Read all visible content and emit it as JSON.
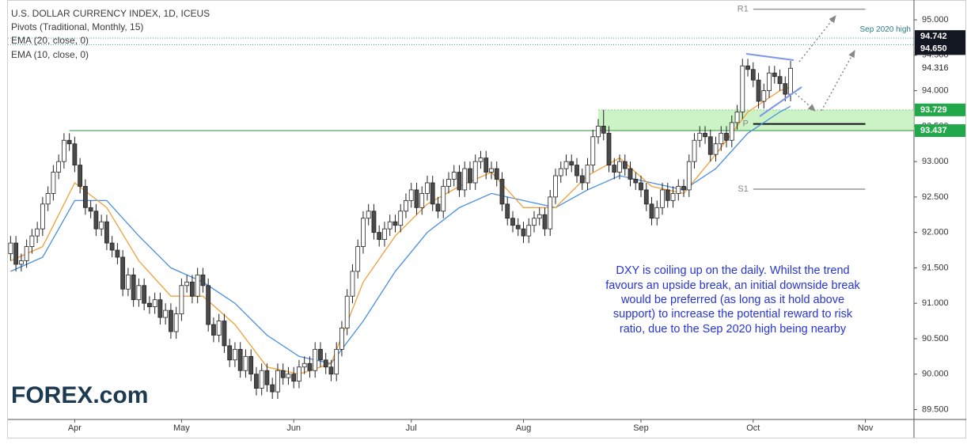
{
  "chart_data": {
    "type": "candlestick",
    "title": "U.S. DOLLAR CURRENCY INDEX, 1D, ICEUS",
    "legend": [
      "Pivots (Traditional, Monthly, 15)"
    ],
    "colors": {
      "up": "#ffffff",
      "down": "#4a4a4a",
      "outline": "#222222"
    },
    "open": [
      91.7,
      91.85,
      91.55,
      91.6,
      91.8,
      91.95,
      92.05,
      92.4,
      92.55,
      92.85,
      93.0,
      93.3,
      93.25,
      92.95,
      92.65,
      92.35,
      92.3,
      92.05,
      92.15,
      91.85,
      91.75,
      91.65,
      91.2,
      91.4,
      91.05,
      91.25,
      91.0,
      90.95,
      91.05,
      90.8,
      90.9,
      90.6,
      90.85,
      91.25,
      91.3,
      91.1,
      91.4,
      91.25,
      90.7,
      90.55,
      90.75,
      90.4,
      90.2,
      90.35,
      90.05,
      90.25,
      90.0,
      89.8,
      90.05,
      89.85,
      89.75,
      90.05,
      89.95,
      90.0,
      89.9,
      90.1,
      90.15,
      90.05,
      90.35,
      90.2,
      90.1,
      90.0,
      90.35,
      90.65,
      91.1,
      91.45,
      91.8,
      92.2,
      92.3,
      92.0,
      91.9,
      92.05,
      92.15,
      92.1,
      92.3,
      92.45,
      92.6,
      92.35,
      92.55,
      92.7,
      92.4,
      92.3,
      92.65,
      92.75,
      92.85,
      92.6,
      92.9,
      92.7,
      93.0,
      93.05,
      92.85,
      92.9,
      92.75,
      92.4,
      92.2,
      92.1,
      92.05,
      91.95,
      92.1,
      92.2,
      92.25,
      92.05,
      92.5,
      92.8,
      92.9,
      93.0,
      92.95,
      92.8,
      92.7,
      92.95,
      93.35,
      93.5,
      93.4,
      92.95,
      92.85,
      93.0,
      92.9,
      92.75,
      92.7,
      92.6,
      92.4,
      92.2,
      92.35,
      92.6,
      92.45,
      92.55,
      92.65,
      92.6,
      93.0,
      93.3,
      93.4,
      93.35,
      93.1,
      93.25,
      93.4,
      93.3,
      93.55,
      93.7,
      94.35,
      94.3,
      94.15,
      93.85,
      94.0,
      94.25,
      94.2,
      94.1,
      93.95
    ],
    "high": [
      91.95,
      91.95,
      91.7,
      91.9,
      92.05,
      92.15,
      92.5,
      92.65,
      92.95,
      93.1,
      93.4,
      93.4,
      93.35,
      93.05,
      92.75,
      92.45,
      92.4,
      92.25,
      92.25,
      91.95,
      91.85,
      91.75,
      91.5,
      91.5,
      91.35,
      91.35,
      91.1,
      91.15,
      91.15,
      91.0,
      91.0,
      90.95,
      91.35,
      91.4,
      91.4,
      91.5,
      91.5,
      91.35,
      90.8,
      90.85,
      90.85,
      90.5,
      90.45,
      90.45,
      90.35,
      90.35,
      90.1,
      90.15,
      90.15,
      89.95,
      90.15,
      90.15,
      90.1,
      90.1,
      90.2,
      90.25,
      90.25,
      90.45,
      90.45,
      90.3,
      90.2,
      90.45,
      90.75,
      91.2,
      91.55,
      91.9,
      92.3,
      92.4,
      92.4,
      92.1,
      92.15,
      92.25,
      92.25,
      92.4,
      92.55,
      92.7,
      92.7,
      92.65,
      92.8,
      92.8,
      92.5,
      92.75,
      92.85,
      92.95,
      92.95,
      93.0,
      93.0,
      93.1,
      93.15,
      93.15,
      93.0,
      93.0,
      92.85,
      92.5,
      92.3,
      92.2,
      92.15,
      92.2,
      92.3,
      92.35,
      92.35,
      92.6,
      92.9,
      93.0,
      93.1,
      93.1,
      93.05,
      92.9,
      93.05,
      93.45,
      93.6,
      93.73,
      93.5,
      93.05,
      93.1,
      93.1,
      93.0,
      92.85,
      92.8,
      92.7,
      92.5,
      92.45,
      92.7,
      92.7,
      92.65,
      92.75,
      92.75,
      93.1,
      93.4,
      93.5,
      93.5,
      93.45,
      93.35,
      93.5,
      93.5,
      93.65,
      93.8,
      94.45,
      94.45,
      94.4,
      94.25,
      94.1,
      94.35,
      94.35,
      94.3,
      94.2,
      94.42
    ],
    "low": [
      91.6,
      91.45,
      91.45,
      91.5,
      91.7,
      91.85,
      91.95,
      92.3,
      92.45,
      92.75,
      92.9,
      93.15,
      92.85,
      92.55,
      92.25,
      92.2,
      91.95,
      91.95,
      91.75,
      91.65,
      91.55,
      91.1,
      91.1,
      90.95,
      90.95,
      90.9,
      90.85,
      90.85,
      90.7,
      90.7,
      90.5,
      90.5,
      90.75,
      91.15,
      91.0,
      91.0,
      91.15,
      90.6,
      90.45,
      90.45,
      90.3,
      90.1,
      90.1,
      89.95,
      89.95,
      89.9,
      89.7,
      89.7,
      89.75,
      89.65,
      89.65,
      89.85,
      89.85,
      89.8,
      89.8,
      90.0,
      89.95,
      89.95,
      90.1,
      90.0,
      89.9,
      89.9,
      90.25,
      90.55,
      91.0,
      91.35,
      91.7,
      92.1,
      91.9,
      91.8,
      91.8,
      91.95,
      92.0,
      92.0,
      92.2,
      92.35,
      92.25,
      92.25,
      92.45,
      92.3,
      92.2,
      92.2,
      92.55,
      92.65,
      92.5,
      92.5,
      92.6,
      92.6,
      92.9,
      92.75,
      92.75,
      92.65,
      92.3,
      92.1,
      92.0,
      91.95,
      91.85,
      91.85,
      92.0,
      92.1,
      91.95,
      91.95,
      92.4,
      92.7,
      92.8,
      92.85,
      92.7,
      92.6,
      92.6,
      92.85,
      93.25,
      93.3,
      92.85,
      92.75,
      92.75,
      92.8,
      92.65,
      92.6,
      92.5,
      92.3,
      92.1,
      92.1,
      92.25,
      92.35,
      92.35,
      92.45,
      92.5,
      92.5,
      92.9,
      93.2,
      93.25,
      93.0,
      93.0,
      93.15,
      93.2,
      93.2,
      93.45,
      93.6,
      94.2,
      94.05,
      93.75,
      93.75,
      93.9,
      94.1,
      94.0,
      93.85,
      93.85
    ],
    "close": [
      91.85,
      91.55,
      91.6,
      91.8,
      91.95,
      92.05,
      92.4,
      92.55,
      92.85,
      93.0,
      93.3,
      93.25,
      92.95,
      92.65,
      92.35,
      92.3,
      92.05,
      92.15,
      91.85,
      91.75,
      91.65,
      91.2,
      91.4,
      91.05,
      91.25,
      91.0,
      90.95,
      91.05,
      90.8,
      90.9,
      90.6,
      90.85,
      91.25,
      91.3,
      91.1,
      91.4,
      91.25,
      90.7,
      90.55,
      90.75,
      90.4,
      90.2,
      90.35,
      90.05,
      90.25,
      90.0,
      89.8,
      90.05,
      89.85,
      89.75,
      90.05,
      89.95,
      90.0,
      89.9,
      90.1,
      90.15,
      90.05,
      90.35,
      90.2,
      90.1,
      90.0,
      90.35,
      90.65,
      91.1,
      91.45,
      91.8,
      92.2,
      92.3,
      92.0,
      91.9,
      92.05,
      92.15,
      92.1,
      92.3,
      92.45,
      92.6,
      92.35,
      92.55,
      92.7,
      92.4,
      92.3,
      92.65,
      92.75,
      92.85,
      92.6,
      92.9,
      92.7,
      93.0,
      93.05,
      92.85,
      92.9,
      92.75,
      92.4,
      92.2,
      92.1,
      92.05,
      91.95,
      92.1,
      92.2,
      92.25,
      92.05,
      92.5,
      92.8,
      92.9,
      93.0,
      92.95,
      92.8,
      92.7,
      92.95,
      93.35,
      93.5,
      93.4,
      92.95,
      92.85,
      93.0,
      92.9,
      92.75,
      92.7,
      92.6,
      92.4,
      92.2,
      92.35,
      92.6,
      92.45,
      92.55,
      92.65,
      92.6,
      93.0,
      93.3,
      93.4,
      93.35,
      93.1,
      93.25,
      93.4,
      93.3,
      93.55,
      93.7,
      94.35,
      94.3,
      94.15,
      93.85,
      94.0,
      94.25,
      94.2,
      94.1,
      93.95,
      94.316
    ],
    "series": [
      {
        "name": "EMA (20, close, 0)",
        "color": "#4a8fe0",
        "x": [
          0,
          6,
          12,
          18,
          24,
          30,
          36,
          42,
          48,
          54,
          60,
          66,
          72,
          78,
          84,
          90,
          96,
          102,
          108,
          114,
          120,
          126,
          132,
          138,
          144,
          146
        ],
        "values": [
          91.45,
          91.65,
          92.45,
          92.45,
          91.95,
          91.5,
          91.3,
          91.0,
          90.55,
          90.25,
          90.15,
          90.75,
          91.45,
          92.0,
          92.35,
          92.55,
          92.45,
          92.35,
          92.6,
          92.8,
          92.7,
          92.6,
          92.9,
          93.4,
          93.7,
          93.78
        ]
      },
      {
        "name": "EMA (10, close, 0)",
        "color": "#f0a03a",
        "x": [
          0,
          6,
          12,
          18,
          24,
          30,
          36,
          42,
          48,
          54,
          60,
          66,
          72,
          78,
          84,
          90,
          96,
          102,
          108,
          114,
          120,
          126,
          132,
          138,
          144,
          146
        ],
        "values": [
          91.6,
          91.8,
          92.7,
          92.35,
          91.6,
          91.1,
          91.1,
          90.7,
          90.1,
          90.0,
          90.15,
          91.3,
          91.95,
          92.4,
          92.65,
          92.85,
          92.35,
          92.35,
          92.8,
          93.05,
          92.65,
          92.55,
          93.1,
          93.7,
          94.0,
          94.05
        ]
      }
    ],
    "xlim": [
      -0.5,
      169.1
    ],
    "xticks": [
      {
        "value": 12,
        "label": "Apr"
      },
      {
        "value": 32,
        "label": "May"
      },
      {
        "value": 53,
        "label": "Jun"
      },
      {
        "value": 75,
        "label": "Jul"
      },
      {
        "value": 96,
        "label": "Aug"
      },
      {
        "value": 118,
        "label": "Sep"
      },
      {
        "value": 139,
        "label": "Oct"
      },
      {
        "value": 160,
        "label": "Nov"
      }
    ],
    "ylim": [
      89.36,
      95.28
    ],
    "yticks": [
      {
        "value": 89.5,
        "label": "89.500"
      },
      {
        "value": 90,
        "label": "90.000"
      },
      {
        "value": 90.5,
        "label": "90.500"
      },
      {
        "value": 91,
        "label": "91.000"
      },
      {
        "value": 91.5,
        "label": "91.500"
      },
      {
        "value": 92,
        "label": "92.000"
      },
      {
        "value": 92.5,
        "label": "92.500"
      },
      {
        "value": 93,
        "label": "93.000"
      },
      {
        "value": 93.5,
        "label": "93.500"
      },
      {
        "value": 94,
        "label": "94.000"
      },
      {
        "value": 94.5,
        "label": "94.500"
      },
      {
        "value": 95,
        "label": "95.000"
      }
    ],
    "grid": false,
    "pivots": [
      {
        "name": "R1",
        "value": 95.15
      },
      {
        "name": "P",
        "value": 93.53
      },
      {
        "name": "S1",
        "value": 92.61
      }
    ],
    "levels": [
      {
        "value": 94.742,
        "label": "94.742"
      },
      {
        "value": 94.65,
        "label": "94.650"
      }
    ],
    "level_note": "Sep 2020 high",
    "support_zone": [
      {
        "value": 93.729,
        "label": "93.729"
      },
      {
        "value": 93.437,
        "label": "93.437"
      }
    ],
    "annotation": [
      "DXY is coiling up on the daily. Whilst the trend",
      "favours an upside break, an initial downside break",
      "would be preferred (as long as it hold above",
      "support) to increase the potential reward to risk",
      "ratio, due to the Sep 2020 high being nearby"
    ],
    "logo": "FOREX.com"
  }
}
